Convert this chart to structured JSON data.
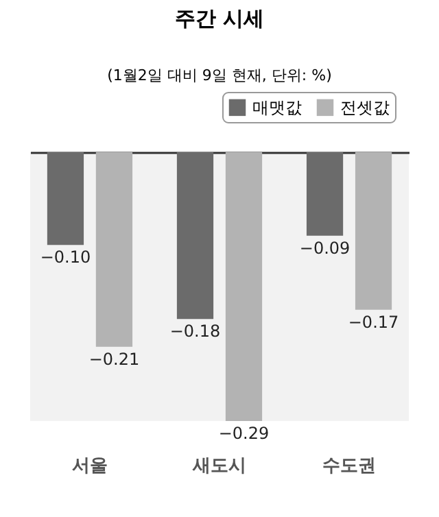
{
  "chart_data": {
    "type": "bar",
    "title": "주간 시세",
    "subtitle": "(1월2일 대비 9일 현재, 단위: %)",
    "categories": [
      "서울",
      "새도시",
      "수도권"
    ],
    "series": [
      {
        "name": "매맷값",
        "color": "#6b6b6b",
        "values": [
          -0.1,
          -0.18,
          -0.09
        ],
        "value_labels": [
          "−0.10",
          "−0.18",
          "−0.09"
        ]
      },
      {
        "name": "전셋값",
        "color": "#b3b3b3",
        "values": [
          -0.21,
          -0.29,
          -0.17
        ],
        "value_labels": [
          "−0.21",
          "−0.29",
          "−0.17"
        ]
      }
    ],
    "legend": "top right"
  }
}
